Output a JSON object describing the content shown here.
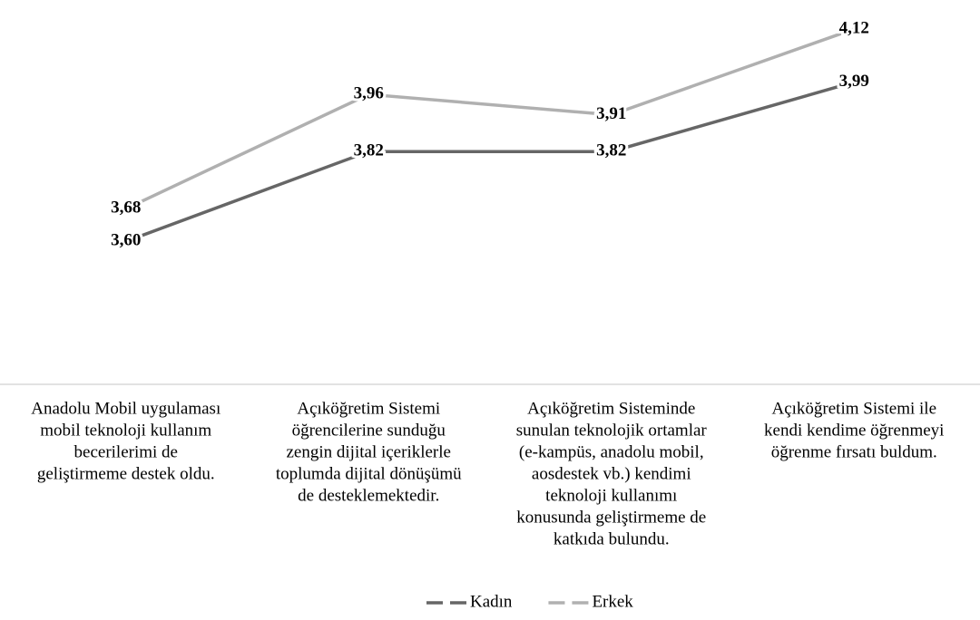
{
  "chart_data": {
    "type": "line",
    "categories": [
      [
        "Anadolu Mobil uygulaması",
        "mobil teknoloji kullanım",
        "becerilerimi de",
        "geliştirmeme destek oldu."
      ],
      [
        "Açıköğretim Sistemi",
        "öğrencilerine sunduğu",
        "zengin dijital içeriklerle",
        "toplumda dijital dönüşümü",
        "de desteklemektedir."
      ],
      [
        "Açıköğretim Sisteminde",
        "sunulan teknolojik ortamlar",
        "(e-kampüs, anadolu mobil,",
        "aosdestek vb.) kendimi",
        "teknoloji kullanımı",
        "konusunda geliştirmeme de",
        "katkıda bulundu."
      ],
      [
        "Açıköğretim Sistemi ile",
        "kendi kendime öğrenmeyi",
        "öğrenme fırsatı buldum."
      ]
    ],
    "series": [
      {
        "name": "Kadın",
        "color": "#666666",
        "values": [
          3.6,
          3.82,
          3.82,
          3.99
        ],
        "value_labels": [
          "3,60",
          "3,82",
          "3,82",
          "3,99"
        ]
      },
      {
        "name": "Erkek",
        "color": "#b0b0b0",
        "values": [
          3.68,
          3.96,
          3.91,
          4.12
        ],
        "value_labels": [
          "3,68",
          "3,96",
          "3,91",
          "4,12"
        ]
      }
    ],
    "ylim": [
      3.25,
      4.2
    ],
    "grid": false,
    "legend": "bottom"
  }
}
